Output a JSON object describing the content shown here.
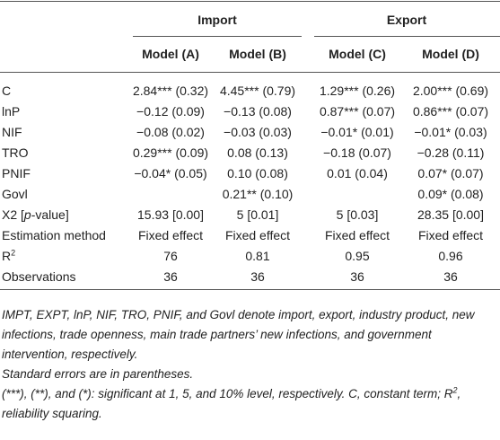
{
  "table": {
    "groups": [
      "Import",
      "Export"
    ],
    "models": [
      "Model (A)",
      "Model (B)",
      "Model (C)",
      "Model (D)"
    ],
    "rows": [
      {
        "label": "C",
        "cells": [
          "2.84*** (0.32)",
          "4.45*** (0.79)",
          "1.29*** (0.26)",
          "2.00*** (0.69)"
        ]
      },
      {
        "label": "lnP",
        "cells": [
          "−0.12 (0.09)",
          "−0.13 (0.08)",
          "0.87*** (0.07)",
          "0.86*** (0.07)"
        ]
      },
      {
        "label": "NIF",
        "cells": [
          "−0.08 (0.02)",
          "−0.03 (0.03)",
          "−0.01* (0.01)",
          "−0.01* (0.03)"
        ]
      },
      {
        "label": "TRO",
        "cells": [
          "0.29*** (0.09)",
          "0.08 (0.13)",
          "−0.18 (0.07)",
          "−0.28 (0.11)"
        ]
      },
      {
        "label": "PNIF",
        "cells": [
          "−0.04* (0.05)",
          "0.10 (0.08)",
          "0.01 (0.04)",
          "0.07* (0.07)"
        ]
      },
      {
        "label": "Govl",
        "cells": [
          null,
          "0.21** (0.10)",
          null,
          "0.09* (0.08)"
        ]
      },
      {
        "label": [
          "X2 [",
          "p",
          "-value]"
        ],
        "cells": [
          "15.93 [0.00]",
          "5 [0.01]",
          "5 [0.03]",
          "28.35 [0.00]"
        ]
      },
      {
        "label": "Estimation method",
        "cells": [
          "Fixed effect",
          "Fixed effect",
          "Fixed effect",
          "Fixed effect"
        ]
      },
      {
        "label": [
          "R",
          "2"
        ],
        "cells": [
          "76",
          "0.81",
          "0.95",
          "0.96"
        ]
      },
      {
        "label": "Observations",
        "cells": [
          "36",
          "36",
          "36",
          "36"
        ]
      }
    ]
  },
  "notes": [
    "IMPT, EXPT, lnP, NIF, TRO, PNIF, and Govl denote import, export, industry product, new infections, trade openness, main trade partners’ new infections, and government intervention, respectively.",
    "Standard errors are in parentheses.",
    [
      "(***), (**), and (*): significant at 1, 5, and 10% level, respectively. C, constant term; R",
      "2",
      ", reliability squaring."
    ]
  ]
}
